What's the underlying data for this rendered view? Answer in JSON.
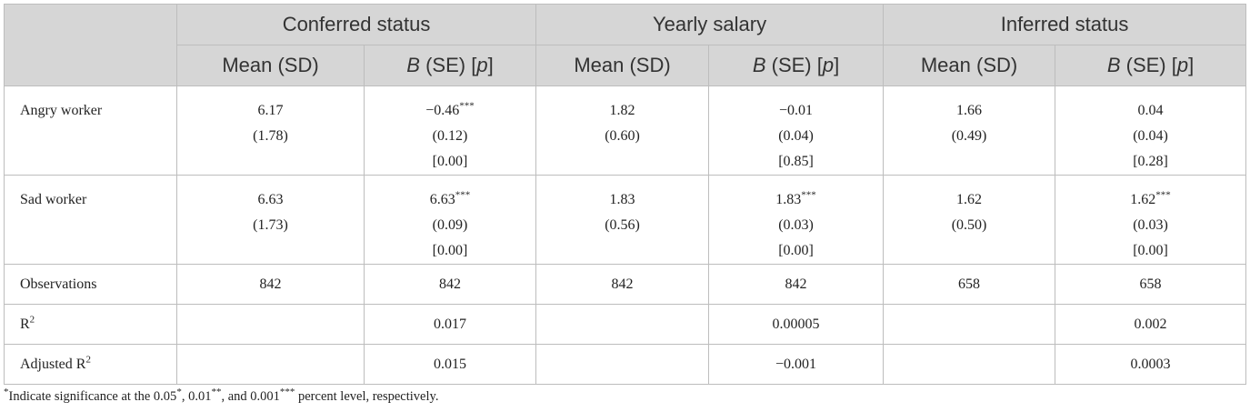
{
  "header": {
    "groups": [
      {
        "label": "Conferred status"
      },
      {
        "label": "Yearly salary"
      },
      {
        "label": "Inferred status"
      }
    ],
    "mean_label": "Mean (SD)",
    "b_label_b": "B",
    "b_label_se": " (SE) [",
    "b_label_p": "p",
    "b_label_close": "]"
  },
  "rows": {
    "angry": {
      "label": "Angry worker",
      "c_mean": "6.17",
      "c_sd": "(1.78)",
      "c_b": "−0.46",
      "c_stars": "***",
      "c_se": "(0.12)",
      "c_p": "[0.00]",
      "y_mean": "1.82",
      "y_sd": "(0.60)",
      "y_b": "−0.01",
      "y_se": "(0.04)",
      "y_p": "[0.85]",
      "i_mean": "1.66",
      "i_sd": "(0.49)",
      "i_b": "0.04",
      "i_se": "(0.04)",
      "i_p": "[0.28]"
    },
    "sad": {
      "label": "Sad worker",
      "c_mean": "6.63",
      "c_sd": "(1.73)",
      "c_b": "6.63",
      "c_stars": "***",
      "c_se": "(0.09)",
      "c_p": "[0.00]",
      "y_mean": "1.83",
      "y_sd": "(0.56)",
      "y_b": "1.83",
      "y_stars": "***",
      "y_se": "(0.03)",
      "y_p": "[0.00]",
      "i_mean": "1.62",
      "i_sd": "(0.50)",
      "i_b": "1.62",
      "i_stars": "***",
      "i_se": "(0.03)",
      "i_p": "[0.00]"
    },
    "observations": {
      "label": "Observations",
      "values": [
        "842",
        "842",
        "842",
        "842",
        "658",
        "658"
      ]
    },
    "r2": {
      "label": "R",
      "sup": "2",
      "values": [
        "",
        "0.017",
        "",
        "0.00005",
        "",
        "0.002"
      ]
    },
    "adj_r2": {
      "label": "Adjusted R",
      "sup": "2",
      "values": [
        "",
        "0.015",
        "",
        "−0.001",
        "",
        "0.0003"
      ]
    }
  },
  "footnote": {
    "star": "*",
    "text_a": "Indicate significance at the 0.05",
    "s1": "*",
    "text_b": ", 0.01",
    "s2": "**",
    "text_c": ", and 0.001",
    "s3": "***",
    "text_d": " percent level, respectively."
  }
}
